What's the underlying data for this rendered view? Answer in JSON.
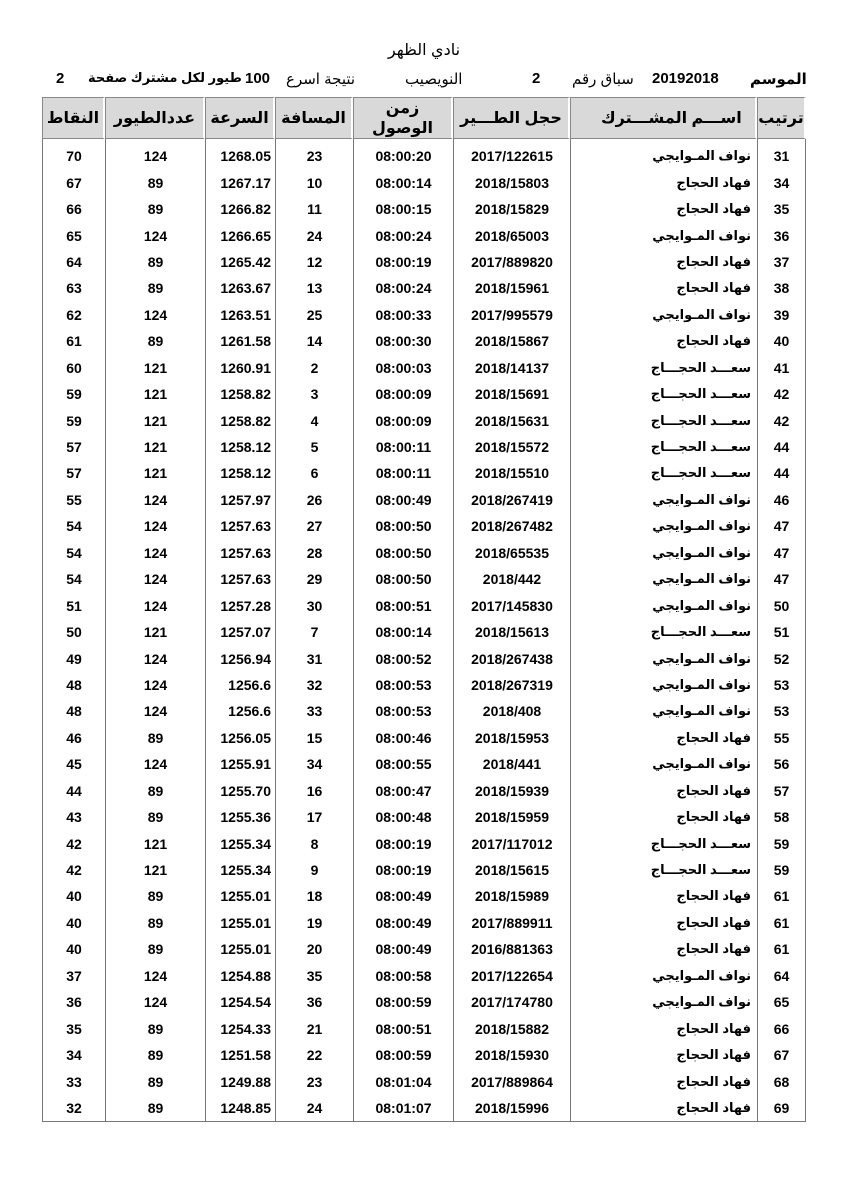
{
  "header": {
    "title": "نادي الظهر",
    "season_label": "الموسم",
    "season": "20192018",
    "race_label": "سباق رقم",
    "race": "2",
    "location": "النويصيب",
    "result_label": "نتيجة اسرع",
    "count": "100",
    "per_label": "طيور لكل مشترك صفحة",
    "page": "2"
  },
  "table": {
    "columns": [
      "ترتيب",
      "اســـم المشـــترك",
      "حجل الطـــير",
      "زمن الوصول",
      "المسافة",
      "السرعة",
      "عددالطيور",
      "النقاط"
    ],
    "rows": [
      [
        "31",
        "نواف المـوايجي",
        "2017/122615",
        "08:00:20",
        "23",
        "1268.05",
        "124",
        "70"
      ],
      [
        "34",
        "فهاد الحجاج",
        "2018/15803",
        "08:00:14",
        "10",
        "1267.17",
        "89",
        "67"
      ],
      [
        "35",
        "فهاد الحجاج",
        "2018/15829",
        "08:00:15",
        "11",
        "1266.82",
        "89",
        "66"
      ],
      [
        "36",
        "نواف المـوايجي",
        "2018/65003",
        "08:00:24",
        "24",
        "1266.65",
        "124",
        "65"
      ],
      [
        "37",
        "فهاد الحجاج",
        "2017/889820",
        "08:00:19",
        "12",
        "1265.42",
        "89",
        "64"
      ],
      [
        "38",
        "فهاد الحجاج",
        "2018/15961",
        "08:00:24",
        "13",
        "1263.67",
        "89",
        "63"
      ],
      [
        "39",
        "نواف المـوايجي",
        "2017/995579",
        "08:00:33",
        "25",
        "1263.51",
        "124",
        "62"
      ],
      [
        "40",
        "فهاد الحجاج",
        "2018/15867",
        "08:00:30",
        "14",
        "1261.58",
        "89",
        "61"
      ],
      [
        "41",
        "سعـــد الحجـــاج",
        "2018/14137",
        "08:00:03",
        "2",
        "1260.91",
        "121",
        "60"
      ],
      [
        "42",
        "سعـــد الحجـــاج",
        "2018/15691",
        "08:00:09",
        "3",
        "1258.82",
        "121",
        "59"
      ],
      [
        "42",
        "سعـــد الحجـــاج",
        "2018/15631",
        "08:00:09",
        "4",
        "1258.82",
        "121",
        "59"
      ],
      [
        "44",
        "سعـــد الحجـــاج",
        "2018/15572",
        "08:00:11",
        "5",
        "1258.12",
        "121",
        "57"
      ],
      [
        "44",
        "سعـــد الحجـــاج",
        "2018/15510",
        "08:00:11",
        "6",
        "1258.12",
        "121",
        "57"
      ],
      [
        "46",
        "نواف المـوايجي",
        "2018/267419",
        "08:00:49",
        "26",
        "1257.97",
        "124",
        "55"
      ],
      [
        "47",
        "نواف المـوايجي",
        "2018/267482",
        "08:00:50",
        "27",
        "1257.63",
        "124",
        "54"
      ],
      [
        "47",
        "نواف المـوايجي",
        "2018/65535",
        "08:00:50",
        "28",
        "1257.63",
        "124",
        "54"
      ],
      [
        "47",
        "نواف المـوايجي",
        "2018/442",
        "08:00:50",
        "29",
        "1257.63",
        "124",
        "54"
      ],
      [
        "50",
        "نواف المـوايجي",
        "2017/145830",
        "08:00:51",
        "30",
        "1257.28",
        "124",
        "51"
      ],
      [
        "51",
        "سعـــد الحجـــاج",
        "2018/15613",
        "08:00:14",
        "7",
        "1257.07",
        "121",
        "50"
      ],
      [
        "52",
        "نواف المـوايجي",
        "2018/267438",
        "08:00:52",
        "31",
        "1256.94",
        "124",
        "49"
      ],
      [
        "53",
        "نواف المـوايجي",
        "2018/267319",
        "08:00:53",
        "32",
        "1256.6",
        "124",
        "48"
      ],
      [
        "53",
        "نواف المـوايجي",
        "2018/408",
        "08:00:53",
        "33",
        "1256.6",
        "124",
        "48"
      ],
      [
        "55",
        "فهاد الحجاج",
        "2018/15953",
        "08:00:46",
        "15",
        "1256.05",
        "89",
        "46"
      ],
      [
        "56",
        "نواف المـوايجي",
        "2018/441",
        "08:00:55",
        "34",
        "1255.91",
        "124",
        "45"
      ],
      [
        "57",
        "فهاد الحجاج",
        "2018/15939",
        "08:00:47",
        "16",
        "1255.70",
        "89",
        "44"
      ],
      [
        "58",
        "فهاد الحجاج",
        "2018/15959",
        "08:00:48",
        "17",
        "1255.36",
        "89",
        "43"
      ],
      [
        "59",
        "سعـــد الحجـــاج",
        "2017/117012",
        "08:00:19",
        "8",
        "1255.34",
        "121",
        "42"
      ],
      [
        "59",
        "سعـــد الحجـــاج",
        "2018/15615",
        "08:00:19",
        "9",
        "1255.34",
        "121",
        "42"
      ],
      [
        "61",
        "فهاد الحجاج",
        "2018/15989",
        "08:00:49",
        "18",
        "1255.01",
        "89",
        "40"
      ],
      [
        "61",
        "فهاد الحجاج",
        "2017/889911",
        "08:00:49",
        "19",
        "1255.01",
        "89",
        "40"
      ],
      [
        "61",
        "فهاد الحجاج",
        "2016/881363",
        "08:00:49",
        "20",
        "1255.01",
        "89",
        "40"
      ],
      [
        "64",
        "نواف المـوايجي",
        "2017/122654",
        "08:00:58",
        "35",
        "1254.88",
        "124",
        "37"
      ],
      [
        "65",
        "نواف المـوايجي",
        "2017/174780",
        "08:00:59",
        "36",
        "1254.54",
        "124",
        "36"
      ],
      [
        "66",
        "فهاد الحجاج",
        "2018/15882",
        "08:00:51",
        "21",
        "1254.33",
        "89",
        "35"
      ],
      [
        "67",
        "فهاد الحجاج",
        "2018/15930",
        "08:00:59",
        "22",
        "1251.58",
        "89",
        "34"
      ],
      [
        "68",
        "فهاد الحجاج",
        "2017/889864",
        "08:01:04",
        "23",
        "1249.88",
        "89",
        "33"
      ],
      [
        "69",
        "فهاد الحجاج",
        "2018/15996",
        "08:01:07",
        "24",
        "1248.85",
        "89",
        "32"
      ]
    ]
  }
}
